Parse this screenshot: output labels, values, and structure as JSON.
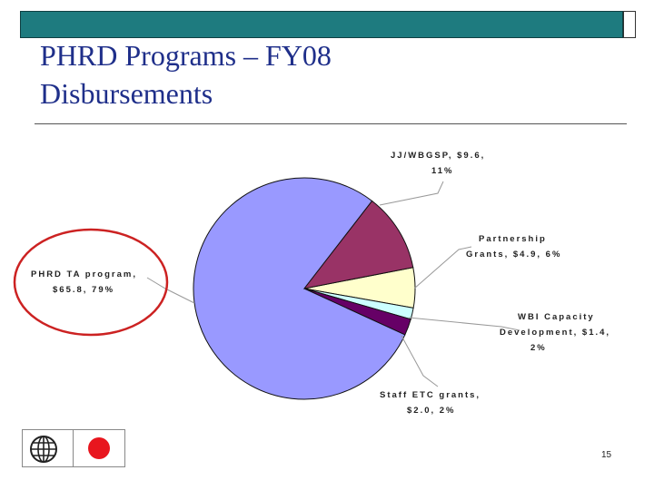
{
  "slide": {
    "title_line1": "PHRD Programs – FY08",
    "title_line2": "Disbursements",
    "page_number": "15"
  },
  "colors": {
    "top_bar": "#1e7b7f",
    "title": "#1f2f8a",
    "highlight_ellipse": "#cc2222",
    "japan_flag_red": "#e8161e"
  },
  "icons": [
    "world-bank-logo-icon",
    "japan-flag-icon"
  ],
  "chart_data": {
    "type": "pie",
    "title": "",
    "slices": [
      {
        "name": "PHRD TA program",
        "value": 65.8,
        "percent": 79,
        "color": "#9999ff",
        "label_lines": [
          "PHRD TA program,",
          "$65.8, 79%"
        ]
      },
      {
        "name": "JJ/WBGSP",
        "value": 9.6,
        "percent": 11,
        "color": "#993366",
        "label_lines": [
          "JJ/WBGSP, $9.6,",
          "11%"
        ]
      },
      {
        "name": "Partnership Grants",
        "value": 4.9,
        "percent": 6,
        "color": "#ffffcc",
        "label_lines": [
          "Partnership",
          "Grants, $4.9, 6%"
        ]
      },
      {
        "name": "WBI Capacity Development",
        "value": 1.4,
        "percent": 2,
        "color": "#ccffff",
        "label_lines": [
          "WBI Capacity",
          "Development, $1.4,",
          "2%"
        ]
      },
      {
        "name": "Staff ETC grants",
        "value": 2.0,
        "percent": 2,
        "color": "#660066",
        "label_lines": [
          "Staff ETC grants,",
          "$2.0, 2%"
        ]
      }
    ],
    "highlighted_slice": "PHRD TA program"
  }
}
